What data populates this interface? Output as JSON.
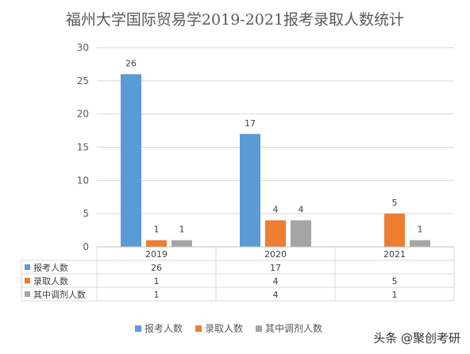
{
  "title": "福州大学国际贸易学2019-2021报考录取人数统计",
  "watermark": "头条 @聚创考研",
  "chart_data": {
    "type": "bar",
    "categories": [
      "2019",
      "2020",
      "2021"
    ],
    "series": [
      {
        "name": "报考人数",
        "values": [
          26,
          17,
          null
        ],
        "color": "#5B9BD5"
      },
      {
        "name": "录取人数",
        "values": [
          1,
          4,
          5
        ],
        "color": "#ED7D31"
      },
      {
        "name": "其中调剂人数",
        "values": [
          1,
          4,
          1
        ],
        "color": "#A5A5A5"
      }
    ],
    "ylim": [
      0,
      30
    ],
    "yticks": [
      0,
      5,
      10,
      15,
      20,
      25,
      30
    ],
    "grid": true,
    "data_table": true,
    "legend_position": "bottom"
  }
}
